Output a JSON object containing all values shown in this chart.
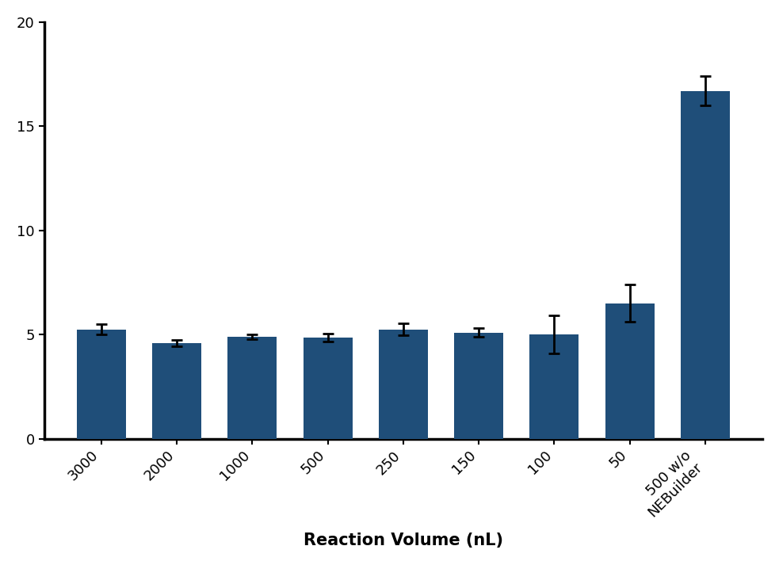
{
  "categories": [
    "3000",
    "2000",
    "1000",
    "500",
    "250",
    "150",
    "100",
    "50",
    "500 w/o\nNEBuilder"
  ],
  "values": [
    5.25,
    4.6,
    4.9,
    4.85,
    5.25,
    5.1,
    5.0,
    6.5,
    16.7
  ],
  "errors": [
    0.25,
    0.15,
    0.12,
    0.2,
    0.3,
    0.2,
    0.9,
    0.9,
    0.7
  ],
  "bar_color": "#1f4e79",
  "error_color": "#000000",
  "background_color": "#ffffff",
  "xlabel": "Reaction Volume (nL)",
  "ylim": [
    0,
    20
  ],
  "yticks": [
    0,
    5,
    10,
    15,
    20
  ],
  "xlabel_fontsize": 15,
  "ylabel_fontsize": 13,
  "tick_fontsize": 13,
  "bar_width": 0.65,
  "spine_linewidth": 2.5
}
